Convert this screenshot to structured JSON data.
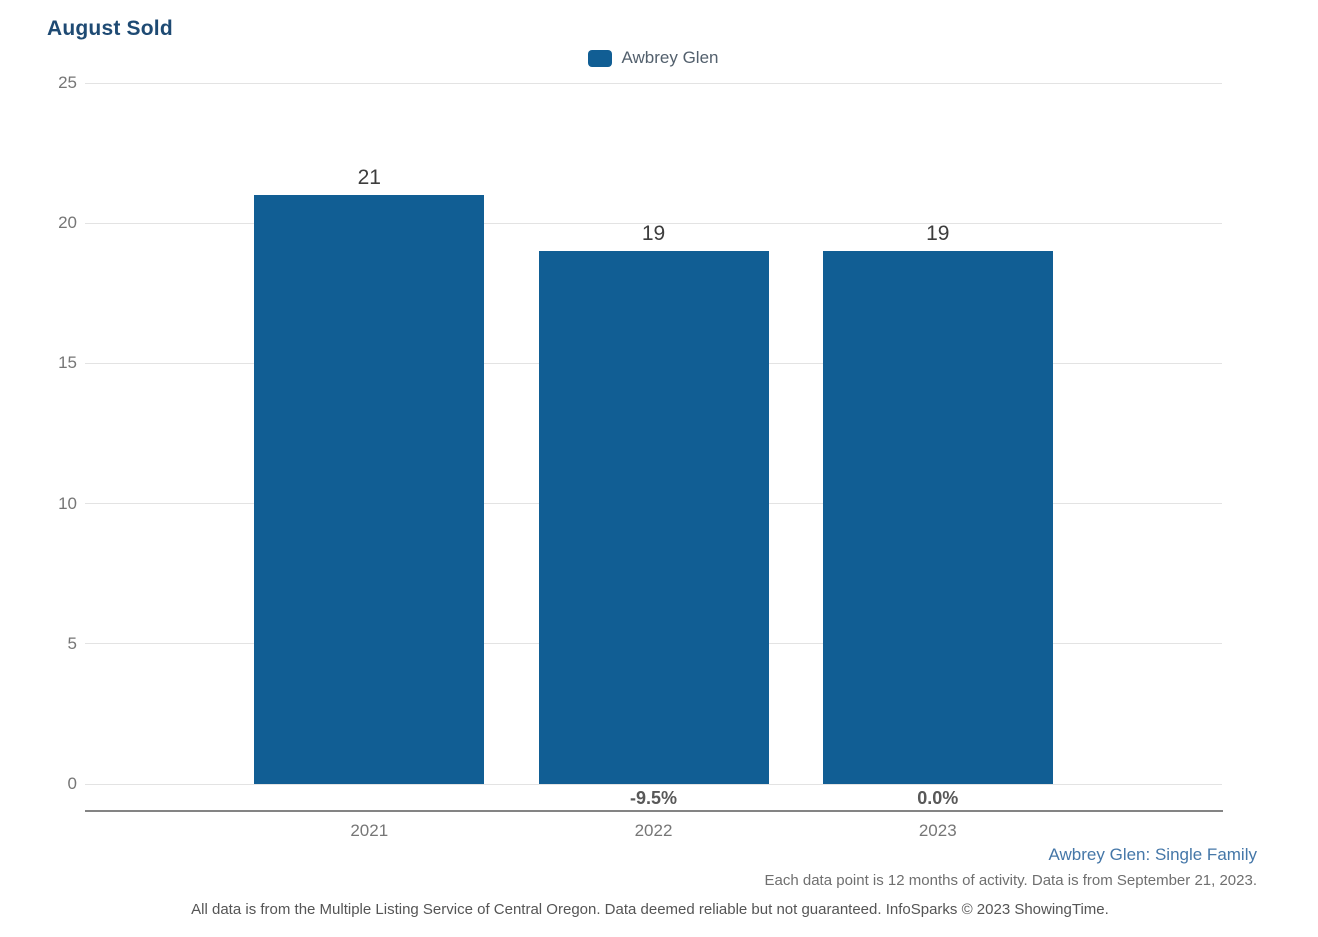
{
  "header": {
    "title": "August Sold"
  },
  "legend": {
    "label": "Awbrey Glen"
  },
  "chart_data": {
    "type": "bar",
    "title": "August Sold",
    "categories": [
      "2021",
      "2022",
      "2023"
    ],
    "values": [
      21,
      19,
      19
    ],
    "value_labels": [
      "21",
      "19",
      "19"
    ],
    "pct_change_labels": [
      "",
      "-9.5%",
      "0.0%"
    ],
    "series": [
      {
        "name": "Awbrey Glen",
        "values": [
          21,
          19,
          19
        ]
      }
    ],
    "xlabel": "",
    "ylabel": "",
    "ylim": [
      0,
      25
    ],
    "yticks": [
      0,
      5,
      10,
      15,
      20,
      25
    ],
    "grid": true,
    "legend_position": "top-center",
    "bar_color": "#115e94"
  },
  "footer": {
    "series_note": "Awbrey Glen: Single Family",
    "data_note": "Each data point is 12 months of activity. Data is from September 21, 2023.",
    "disclaimer": "All data is from the Multiple Listing Service of Central Oregon. Data deemed reliable but not guaranteed. InfoSparks © 2023 ShowingTime."
  }
}
